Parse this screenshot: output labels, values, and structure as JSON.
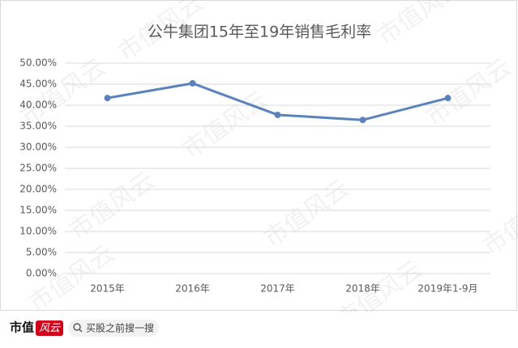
{
  "chart_data": {
    "type": "line",
    "title": "公牛集团15年至19年销售毛利率",
    "categories": [
      "2015年",
      "2016年",
      "2017年",
      "2018年",
      "2019年1-9月"
    ],
    "series": [
      {
        "name": "销售毛利率",
        "color": "#5b83bb",
        "values": [
          41.7,
          45.2,
          37.7,
          36.5,
          41.7
        ]
      }
    ],
    "ylim": [
      0,
      50
    ],
    "yticks": [
      {
        "value": 0,
        "label": "0.00%"
      },
      {
        "value": 5,
        "label": "5.00%"
      },
      {
        "value": 10,
        "label": "10.00%"
      },
      {
        "value": 15,
        "label": "15.00%"
      },
      {
        "value": 20,
        "label": "20.00%"
      },
      {
        "value": 25,
        "label": "25.00%"
      },
      {
        "value": 30,
        "label": "30.00%"
      },
      {
        "value": 35,
        "label": "35.00%"
      },
      {
        "value": 40,
        "label": "40.00%"
      },
      {
        "value": 45,
        "label": "45.00%"
      },
      {
        "value": 50,
        "label": "50.00%"
      }
    ],
    "grid": true
  },
  "watermark": "市值风云",
  "footer": {
    "logo_main": "市值",
    "logo_accent": "风云",
    "search": "买股之前搜一搜"
  }
}
